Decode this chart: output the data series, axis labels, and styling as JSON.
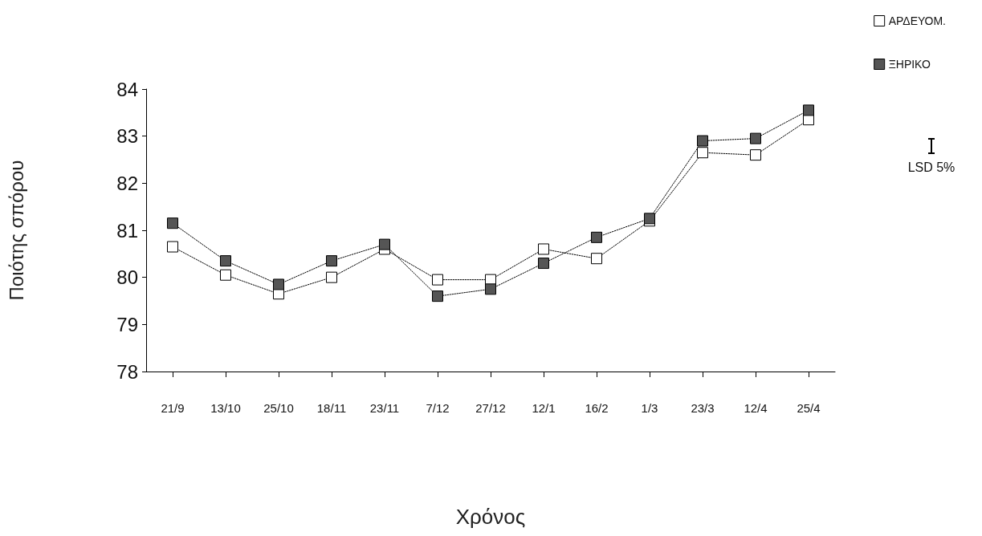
{
  "chart_data": {
    "type": "line",
    "xlabel": "Χρόνος",
    "ylabel": "Ποιότης σπόρου",
    "categories": [
      "21/9",
      "13/10",
      "25/10",
      "18/11",
      "23/11",
      "7/12",
      "27/12",
      "12/1",
      "16/2",
      "1/3",
      "23/3",
      "12/4",
      "25/4"
    ],
    "series": [
      {
        "name": "ΑΡΔΕΥΟΜ.",
        "color": "#ffffff",
        "values": [
          80.65,
          80.05,
          79.65,
          80.0,
          80.6,
          79.95,
          79.95,
          80.6,
          80.4,
          81.2,
          82.65,
          82.6,
          83.35
        ]
      },
      {
        "name": "ΞΗΡΙΚΟ",
        "color": "#555555",
        "values": [
          81.15,
          80.35,
          79.85,
          80.35,
          80.7,
          79.6,
          79.75,
          80.3,
          80.85,
          81.25,
          82.9,
          82.95,
          83.55
        ]
      }
    ],
    "ylim": [
      78,
      84
    ],
    "yticks": [
      78,
      79,
      80,
      81,
      82,
      83,
      84
    ],
    "grid": false,
    "legend": "top right",
    "marker": "square",
    "line_style": "dotted",
    "annotations": [
      "LSD 5%"
    ]
  }
}
